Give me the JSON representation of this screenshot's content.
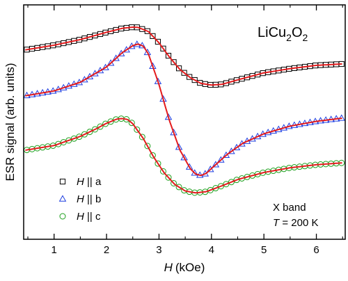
{
  "chart_data": {
    "type": "scatter",
    "xlabel_symbol": "H",
    "xlabel_unit": "(kOe)",
    "ylabel": "ESR signal (arb. units)",
    "xlim": [
      0.42,
      6.55
    ],
    "ylim": [
      0,
      1
    ],
    "y_ticks_labeled": false,
    "x_ticks": [
      1,
      2,
      3,
      4,
      5,
      6
    ],
    "x_minor_ticks": [
      0.5,
      1.5,
      2.5,
      3.5,
      4.5,
      5.5,
      6.5
    ],
    "formula": {
      "base": "LiCu",
      "sub1": "2",
      "mid": "O",
      "sub2": "2"
    },
    "note": {
      "line1": "X band",
      "line2_symbol": "T",
      "line2_rest": " = 200 K"
    },
    "fit_color": "#e41a1c",
    "series": [
      {
        "label_symbol": "H",
        "label_rest": " || a",
        "marker": "square",
        "color": "#000000",
        "fit_x": [
          0.45,
          1.0,
          1.5,
          2.0,
          2.3,
          2.5,
          2.6,
          2.8,
          3.0,
          3.2,
          3.4,
          3.6,
          3.8,
          4.0,
          4.2,
          4.5,
          5.0,
          5.5,
          6.0,
          6.5
        ],
        "fit_y": [
          0.808,
          0.828,
          0.852,
          0.883,
          0.9,
          0.905,
          0.904,
          0.886,
          0.838,
          0.777,
          0.724,
          0.689,
          0.665,
          0.658,
          0.661,
          0.68,
          0.71,
          0.728,
          0.742,
          0.748
        ]
      },
      {
        "label_symbol": "H",
        "label_rest": " || b",
        "marker": "triangle",
        "color": "#1f3fe0",
        "fit_x": [
          0.45,
          1.0,
          1.5,
          2.0,
          2.3,
          2.5,
          2.6,
          2.7,
          2.8,
          3.0,
          3.2,
          3.4,
          3.6,
          3.7,
          3.8,
          3.9,
          4.0,
          4.3,
          4.6,
          5.0,
          5.5,
          6.0,
          6.5
        ],
        "fit_y": [
          0.612,
          0.633,
          0.67,
          0.735,
          0.796,
          0.826,
          0.833,
          0.824,
          0.79,
          0.66,
          0.505,
          0.38,
          0.3,
          0.278,
          0.272,
          0.281,
          0.302,
          0.362,
          0.41,
          0.45,
          0.483,
          0.503,
          0.517
        ]
      },
      {
        "label_symbol": "H",
        "label_rest": " || c",
        "marker": "circle",
        "color": "#1a9e1a",
        "fit_x": [
          0.45,
          1.0,
          1.5,
          1.8,
          2.0,
          2.2,
          2.3,
          2.4,
          2.5,
          2.7,
          2.9,
          3.1,
          3.3,
          3.5,
          3.7,
          3.9,
          4.2,
          4.5,
          5.0,
          5.5,
          6.0,
          6.5
        ],
        "fit_y": [
          0.38,
          0.4,
          0.439,
          0.471,
          0.495,
          0.513,
          0.515,
          0.511,
          0.493,
          0.43,
          0.35,
          0.283,
          0.234,
          0.206,
          0.198,
          0.203,
          0.228,
          0.255,
          0.285,
          0.305,
          0.318,
          0.326
        ]
      }
    ]
  }
}
